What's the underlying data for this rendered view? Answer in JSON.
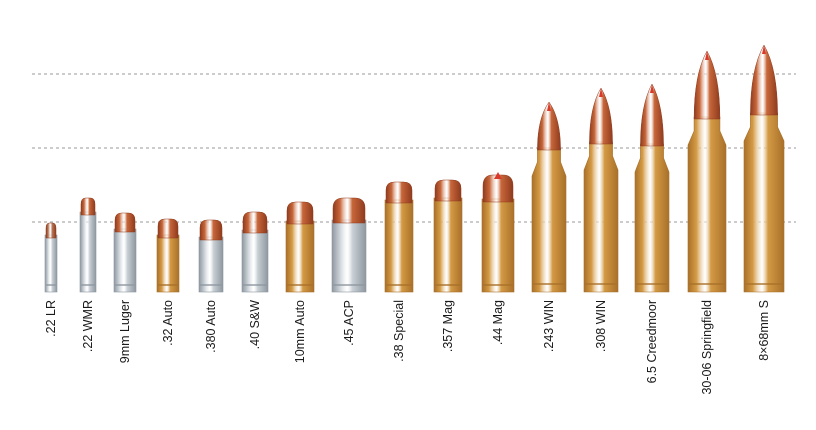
{
  "cartridges": [
    {
      "label": ".22 LR",
      "kind": "pistol",
      "case": "silver",
      "bullet": "lead"
    },
    {
      "label": ".22 WMR",
      "kind": "pistol",
      "case": "silver",
      "bullet": "copper"
    },
    {
      "label": "9mm Luger",
      "kind": "pistol",
      "case": "silver",
      "bullet": "copper"
    },
    {
      "label": ".32 Auto",
      "kind": "pistol",
      "case": "brass",
      "bullet": "copper"
    },
    {
      "label": ".380 Auto",
      "kind": "pistol",
      "case": "silver",
      "bullet": "copper"
    },
    {
      "label": ".40 S&W",
      "kind": "pistol",
      "case": "silver",
      "bullet": "copper"
    },
    {
      "label": "10mm Auto",
      "kind": "pistol",
      "case": "brass",
      "bullet": "copper"
    },
    {
      "label": ".45 ACP",
      "kind": "pistol",
      "case": "silver",
      "bullet": "copper"
    },
    {
      "label": ".38 Special",
      "kind": "pistol",
      "case": "brass",
      "bullet": "copper"
    },
    {
      "label": ".357 Mag",
      "kind": "pistol",
      "case": "brass",
      "bullet": "copper"
    },
    {
      "label": ".44 Mag",
      "kind": "pistol",
      "case": "brass",
      "bullet": "copper"
    },
    {
      "label": ".243 WIN",
      "kind": "rifle",
      "case": "brass",
      "bullet": "copper"
    },
    {
      "label": ".308 WIN",
      "kind": "rifle",
      "case": "brass",
      "bullet": "copper"
    },
    {
      "label": "6.5 Creedmoor",
      "kind": "rifle",
      "case": "brass",
      "bullet": "copper"
    },
    {
      "label": "30-06 Springfield",
      "kind": "rifle",
      "case": "brass",
      "bullet": "copper"
    },
    {
      "label": "8×68mm S",
      "kind": "rifle",
      "case": "brass",
      "bullet": "copper"
    }
  ],
  "colors": {
    "brass": "#d49a44",
    "brass_dark": "#a8702a",
    "silver": "#c9d0d6",
    "silver_dark": "#8e979f",
    "copper": "#c8673a",
    "copper_dark": "#8f3b1e",
    "lead": "#b8795a",
    "tip": "#d93a2b",
    "gridline": "#9a9a9a",
    "label": "#1a1a1a"
  }
}
